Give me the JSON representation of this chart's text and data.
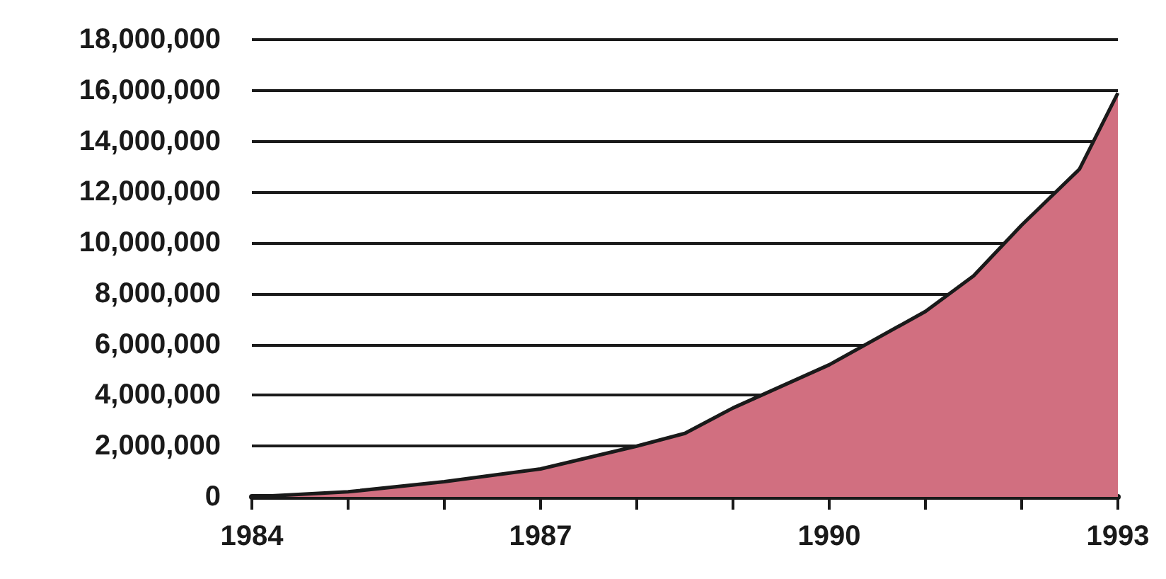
{
  "chart_data": {
    "type": "area",
    "x": [
      1984,
      1985,
      1986,
      1987,
      1988,
      1988.5,
      1989,
      1990,
      1991,
      1991.5,
      1992,
      1992.6,
      1993
    ],
    "values": [
      0,
      200000,
      600000,
      1100000,
      2000000,
      2500000,
      3500000,
      5200000,
      7300000,
      8700000,
      10700000,
      12900000,
      15900000
    ],
    "color": "#d16f80",
    "xlim": [
      1984,
      1993
    ],
    "xticks": [
      1984,
      {
        "value": 1985,
        "label": null
      },
      {
        "value": 1986,
        "label": null
      },
      1987,
      {
        "value": 1988,
        "label": null
      },
      {
        "value": 1989,
        "label": null
      },
      1990,
      {
        "value": 1991,
        "label": null
      },
      {
        "value": 1992,
        "label": null
      },
      1993
    ],
    "ylim": [
      0,
      18000000
    ],
    "yticks": [
      {
        "value": 0,
        "label": "0"
      },
      {
        "value": 2000000,
        "label": "2,000,000"
      },
      {
        "value": 4000000,
        "label": "4,000,000"
      },
      {
        "value": 6000000,
        "label": "6,000,000"
      },
      {
        "value": 8000000,
        "label": "8,000,000"
      },
      {
        "value": 10000000,
        "label": "10,000,000"
      },
      {
        "value": 12000000,
        "label": "12,000,000"
      },
      {
        "value": 14000000,
        "label": "14,000,000"
      },
      {
        "value": 16000000,
        "label": "16,000,000"
      },
      {
        "value": 18000000,
        "label": "18,000,000"
      }
    ],
    "grid": "y"
  }
}
